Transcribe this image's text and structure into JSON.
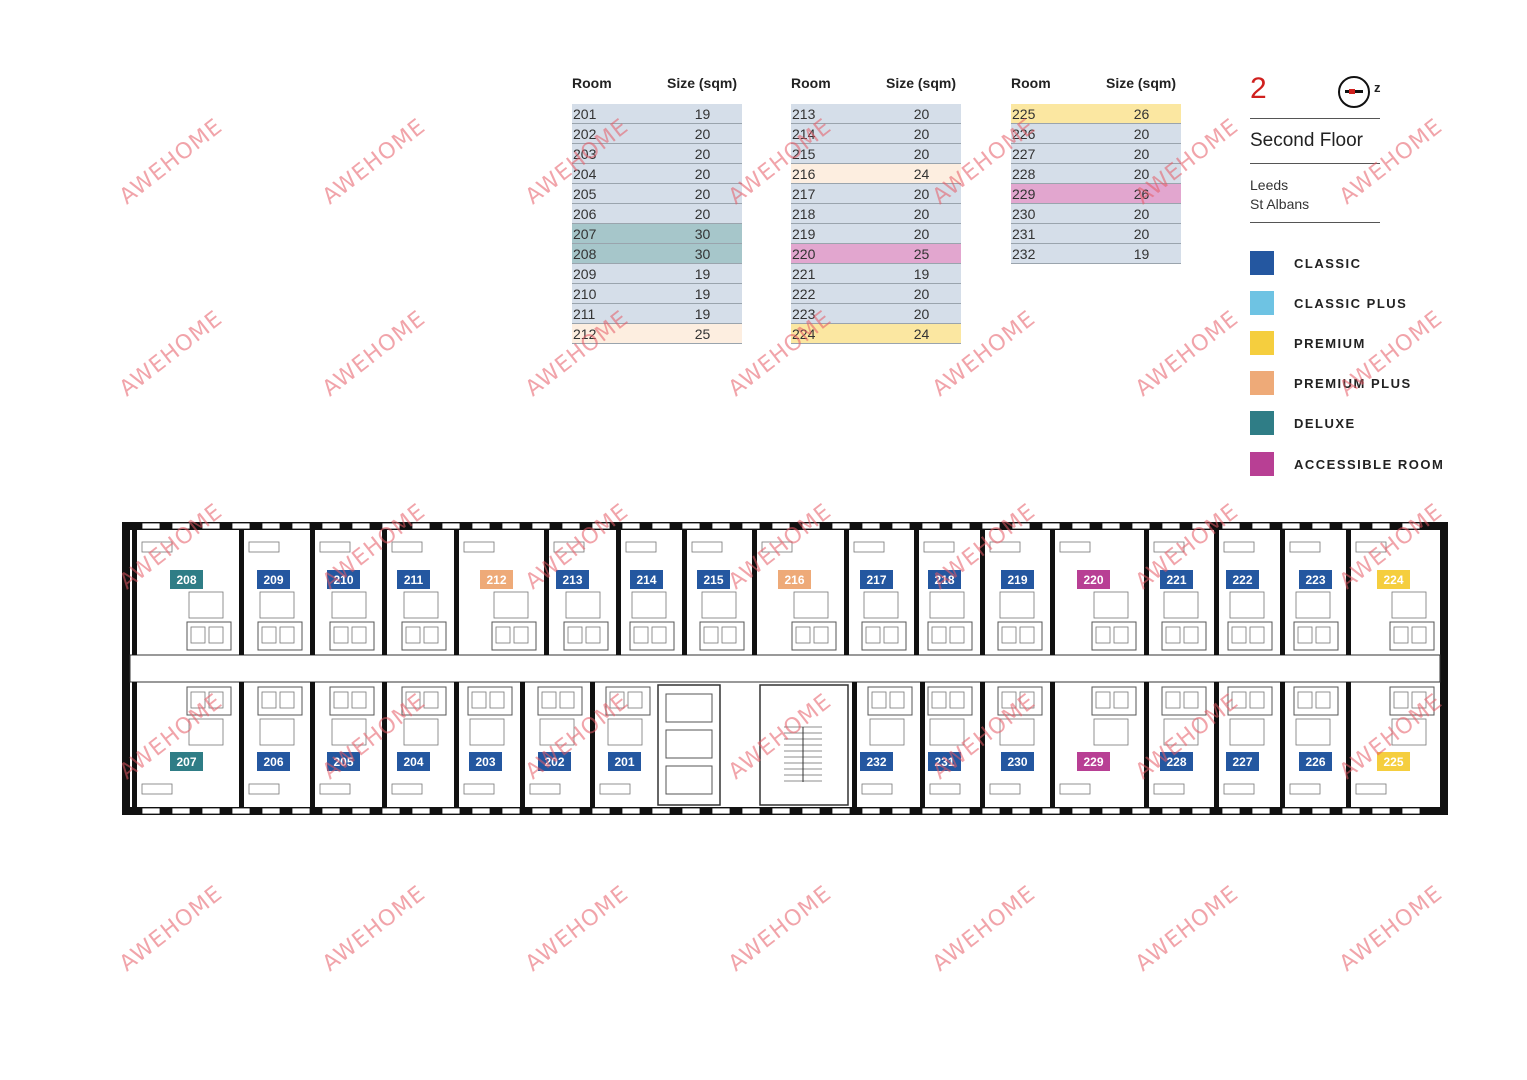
{
  "tables": [
    {
      "header_room": "Room",
      "header_size": "Size (sqm)",
      "rows": [
        {
          "room": "201",
          "size": "19",
          "type": "classic"
        },
        {
          "room": "202",
          "size": "20",
          "type": "classic"
        },
        {
          "room": "203",
          "size": "20",
          "type": "classic"
        },
        {
          "room": "204",
          "size": "20",
          "type": "classic"
        },
        {
          "room": "205",
          "size": "20",
          "type": "classic"
        },
        {
          "room": "206",
          "size": "20",
          "type": "classic"
        },
        {
          "room": "207",
          "size": "30",
          "type": "deluxe"
        },
        {
          "room": "208",
          "size": "30",
          "type": "deluxe"
        },
        {
          "room": "209",
          "size": "19",
          "type": "classic"
        },
        {
          "room": "210",
          "size": "19",
          "type": "classic"
        },
        {
          "room": "211",
          "size": "19",
          "type": "classic"
        },
        {
          "room": "212",
          "size": "25",
          "type": "premium_plus"
        }
      ]
    },
    {
      "header_room": "Room",
      "header_size": "Size (sqm)",
      "rows": [
        {
          "room": "213",
          "size": "20",
          "type": "classic"
        },
        {
          "room": "214",
          "size": "20",
          "type": "classic"
        },
        {
          "room": "215",
          "size": "20",
          "type": "classic"
        },
        {
          "room": "216",
          "size": "24",
          "type": "premium_plus"
        },
        {
          "room": "217",
          "size": "20",
          "type": "classic"
        },
        {
          "room": "218",
          "size": "20",
          "type": "classic"
        },
        {
          "room": "219",
          "size": "20",
          "type": "classic"
        },
        {
          "room": "220",
          "size": "25",
          "type": "accessible"
        },
        {
          "room": "221",
          "size": "19",
          "type": "classic"
        },
        {
          "room": "222",
          "size": "20",
          "type": "classic"
        },
        {
          "room": "223",
          "size": "20",
          "type": "classic"
        },
        {
          "room": "224",
          "size": "24",
          "type": "premium"
        }
      ]
    },
    {
      "header_room": "Room",
      "header_size": "Size (sqm)",
      "rows": [
        {
          "room": "225",
          "size": "26",
          "type": "premium"
        },
        {
          "room": "226",
          "size": "20",
          "type": "classic"
        },
        {
          "room": "227",
          "size": "20",
          "type": "classic"
        },
        {
          "room": "228",
          "size": "20",
          "type": "classic"
        },
        {
          "room": "229",
          "size": "26",
          "type": "accessible"
        },
        {
          "room": "230",
          "size": "20",
          "type": "classic"
        },
        {
          "room": "231",
          "size": "20",
          "type": "classic"
        },
        {
          "room": "232",
          "size": "19",
          "type": "classic"
        }
      ]
    }
  ],
  "legend": {
    "floor_number": "2",
    "compass_label": "z",
    "floor_title": "Second Floor",
    "locations": [
      "Leeds",
      "St Albans"
    ],
    "items": [
      {
        "key": "classic",
        "label": "CLASSIC",
        "color": "#2457a0"
      },
      {
        "key": "classic_plus",
        "label": "CLASSIC PLUS",
        "color": "#6ec3e3"
      },
      {
        "key": "premium",
        "label": "PREMIUM",
        "color": "#f5ce3e"
      },
      {
        "key": "premium_plus",
        "label": "PREMIUM PLUS",
        "color": "#eeaa78"
      },
      {
        "key": "deluxe",
        "label": "DELUXE",
        "color": "#2f7d86"
      },
      {
        "key": "accessible",
        "label": "ACCESSIBLE ROOM",
        "color": "#b83f94"
      }
    ]
  },
  "row_tints": {
    "classic": "#d5dee9",
    "deluxe": "#a6c6ca",
    "premium_plus": "#fdeee0",
    "premium": "#fbe7a1",
    "accessible": "#e2a6cf"
  },
  "plan": {
    "top_rooms": [
      {
        "room": "208",
        "type": "deluxe"
      },
      {
        "room": "209",
        "type": "classic"
      },
      {
        "room": "210",
        "type": "classic"
      },
      {
        "room": "211",
        "type": "classic"
      },
      {
        "room": "212",
        "type": "premium_plus"
      },
      {
        "room": "213",
        "type": "classic"
      },
      {
        "room": "214",
        "type": "classic"
      },
      {
        "room": "215",
        "type": "classic"
      },
      {
        "room": "216",
        "type": "premium_plus"
      },
      {
        "room": "217",
        "type": "classic"
      },
      {
        "room": "218",
        "type": "classic"
      },
      {
        "room": "219",
        "type": "classic"
      },
      {
        "room": "220",
        "type": "accessible"
      },
      {
        "room": "221",
        "type": "classic"
      },
      {
        "room": "222",
        "type": "classic"
      },
      {
        "room": "223",
        "type": "classic"
      },
      {
        "room": "224",
        "type": "premium"
      }
    ],
    "bottom_rooms": [
      {
        "room": "207",
        "type": "deluxe"
      },
      {
        "room": "206",
        "type": "classic"
      },
      {
        "room": "205",
        "type": "classic"
      },
      {
        "room": "204",
        "type": "classic"
      },
      {
        "room": "203",
        "type": "classic"
      },
      {
        "room": "202",
        "type": "classic"
      },
      {
        "room": "201",
        "type": "classic"
      },
      {
        "room": "232",
        "type": "classic"
      },
      {
        "room": "231",
        "type": "classic"
      },
      {
        "room": "230",
        "type": "classic"
      },
      {
        "room": "229",
        "type": "accessible"
      },
      {
        "room": "228",
        "type": "classic"
      },
      {
        "room": "227",
        "type": "classic"
      },
      {
        "room": "226",
        "type": "classic"
      },
      {
        "room": "225",
        "type": "premium"
      }
    ]
  },
  "watermark": "AWEHOME"
}
